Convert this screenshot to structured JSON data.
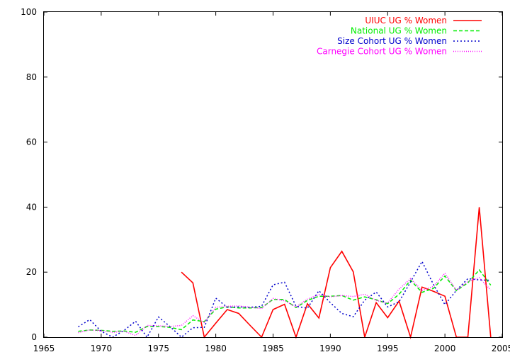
{
  "chart_data": {
    "type": "line",
    "xlim": [
      1965,
      2005
    ],
    "ylim": [
      0,
      100
    ],
    "xticks": [
      1965,
      1970,
      1975,
      1980,
      1985,
      1990,
      1995,
      2000,
      2005
    ],
    "yticks": [
      0,
      20,
      40,
      60,
      80,
      100
    ],
    "grid": false,
    "legend_position": "top-right",
    "series": [
      {
        "name": "UIUC UG % Women",
        "color": "#ff0000",
        "style": "solid",
        "x": [
          1977,
          1978,
          1979,
          1980,
          1981,
          1982,
          1983,
          1984,
          1985,
          1986,
          1987,
          1988,
          1989,
          1990,
          1991,
          1992,
          1993,
          1994,
          1995,
          1996,
          1997,
          1998,
          1999,
          2000,
          2001,
          2002,
          2003,
          2004
        ],
        "values": [
          20,
          16.7,
          0,
          4.3,
          8.5,
          7.3,
          3.6,
          0,
          8.5,
          10.1,
          0,
          10.3,
          5.9,
          21.4,
          26.4,
          20.1,
          0,
          10.6,
          6,
          11.1,
          0,
          15.4,
          14.1,
          12.6,
          0,
          0,
          40,
          0
        ]
      },
      {
        "name": "National UG % Women",
        "color": "#00ee00",
        "style": "dashed",
        "x": [
          1968,
          1969,
          1970,
          1971,
          1972,
          1973,
          1974,
          1975,
          1976,
          1977,
          1978,
          1979,
          1980,
          1981,
          1982,
          1983,
          1984,
          1985,
          1986,
          1987,
          1988,
          1989,
          1990,
          1991,
          1992,
          1993,
          1994,
          1995,
          1996,
          1997,
          1998,
          1999,
          2000,
          2001,
          2002,
          2003,
          2004
        ],
        "values": [
          1.8,
          2.2,
          2.1,
          1.8,
          1.9,
          1.5,
          3.3,
          3.3,
          3,
          2.3,
          5.3,
          4.8,
          8.6,
          9.3,
          9,
          9,
          9.1,
          11.6,
          11.6,
          9.1,
          11.3,
          12.6,
          12.6,
          12.8,
          11.4,
          12.4,
          11.5,
          10.3,
          13.2,
          17.5,
          13.8,
          15,
          18.8,
          14.3,
          16.7,
          20.7,
          16
        ]
      },
      {
        "name": "Size Cohort UG % Women",
        "color": "#0000cc",
        "style": "dotted",
        "x": [
          1968,
          1969,
          1970,
          1971,
          1972,
          1973,
          1974,
          1975,
          1976,
          1977,
          1978,
          1979,
          1980,
          1981,
          1982,
          1983,
          1984,
          1985,
          1986,
          1987,
          1988,
          1989,
          1990,
          1991,
          1992,
          1993,
          1994,
          1995,
          1996,
          1997,
          1998,
          1999,
          2000,
          2001,
          2002,
          2003,
          2004
        ],
        "values": [
          3.2,
          5.4,
          1.8,
          0,
          2.1,
          4.9,
          0,
          6.2,
          3.3,
          0,
          2.9,
          3,
          12,
          9.2,
          9.3,
          9.2,
          9.5,
          16.1,
          16.9,
          9.5,
          8.9,
          14.3,
          10.6,
          7.3,
          6.3,
          11.4,
          13.9,
          9.3,
          10.9,
          17,
          23.3,
          16.2,
          10,
          14.4,
          18,
          17.6,
          17.5
        ]
      },
      {
        "name": "Carnegie Cohort UG % Women",
        "color": "#ff00ff",
        "style": "dotted-fine",
        "x": [
          1968,
          1969,
          1970,
          1971,
          1972,
          1973,
          1974,
          1975,
          1976,
          1977,
          1978,
          1979,
          1980,
          1981,
          1982,
          1983,
          1984,
          1985,
          1986,
          1987,
          1988,
          1989,
          1990,
          1991,
          1992,
          1993,
          1994,
          1995,
          1996,
          1997,
          1998,
          1999,
          2000,
          2001,
          2002,
          2003,
          2004
        ],
        "values": [
          1.4,
          2.2,
          2,
          1.5,
          1.8,
          0.5,
          3.6,
          3.5,
          3.3,
          3.6,
          6.6,
          4.5,
          9.2,
          9.5,
          9.6,
          9.2,
          8.8,
          11.9,
          11.2,
          9.3,
          11.7,
          13.1,
          12.4,
          12.8,
          12.5,
          13.2,
          11.3,
          10.5,
          14.8,
          18,
          14.4,
          15.6,
          19.7,
          14.4,
          17.1,
          18.3,
          14.5
        ]
      }
    ]
  }
}
